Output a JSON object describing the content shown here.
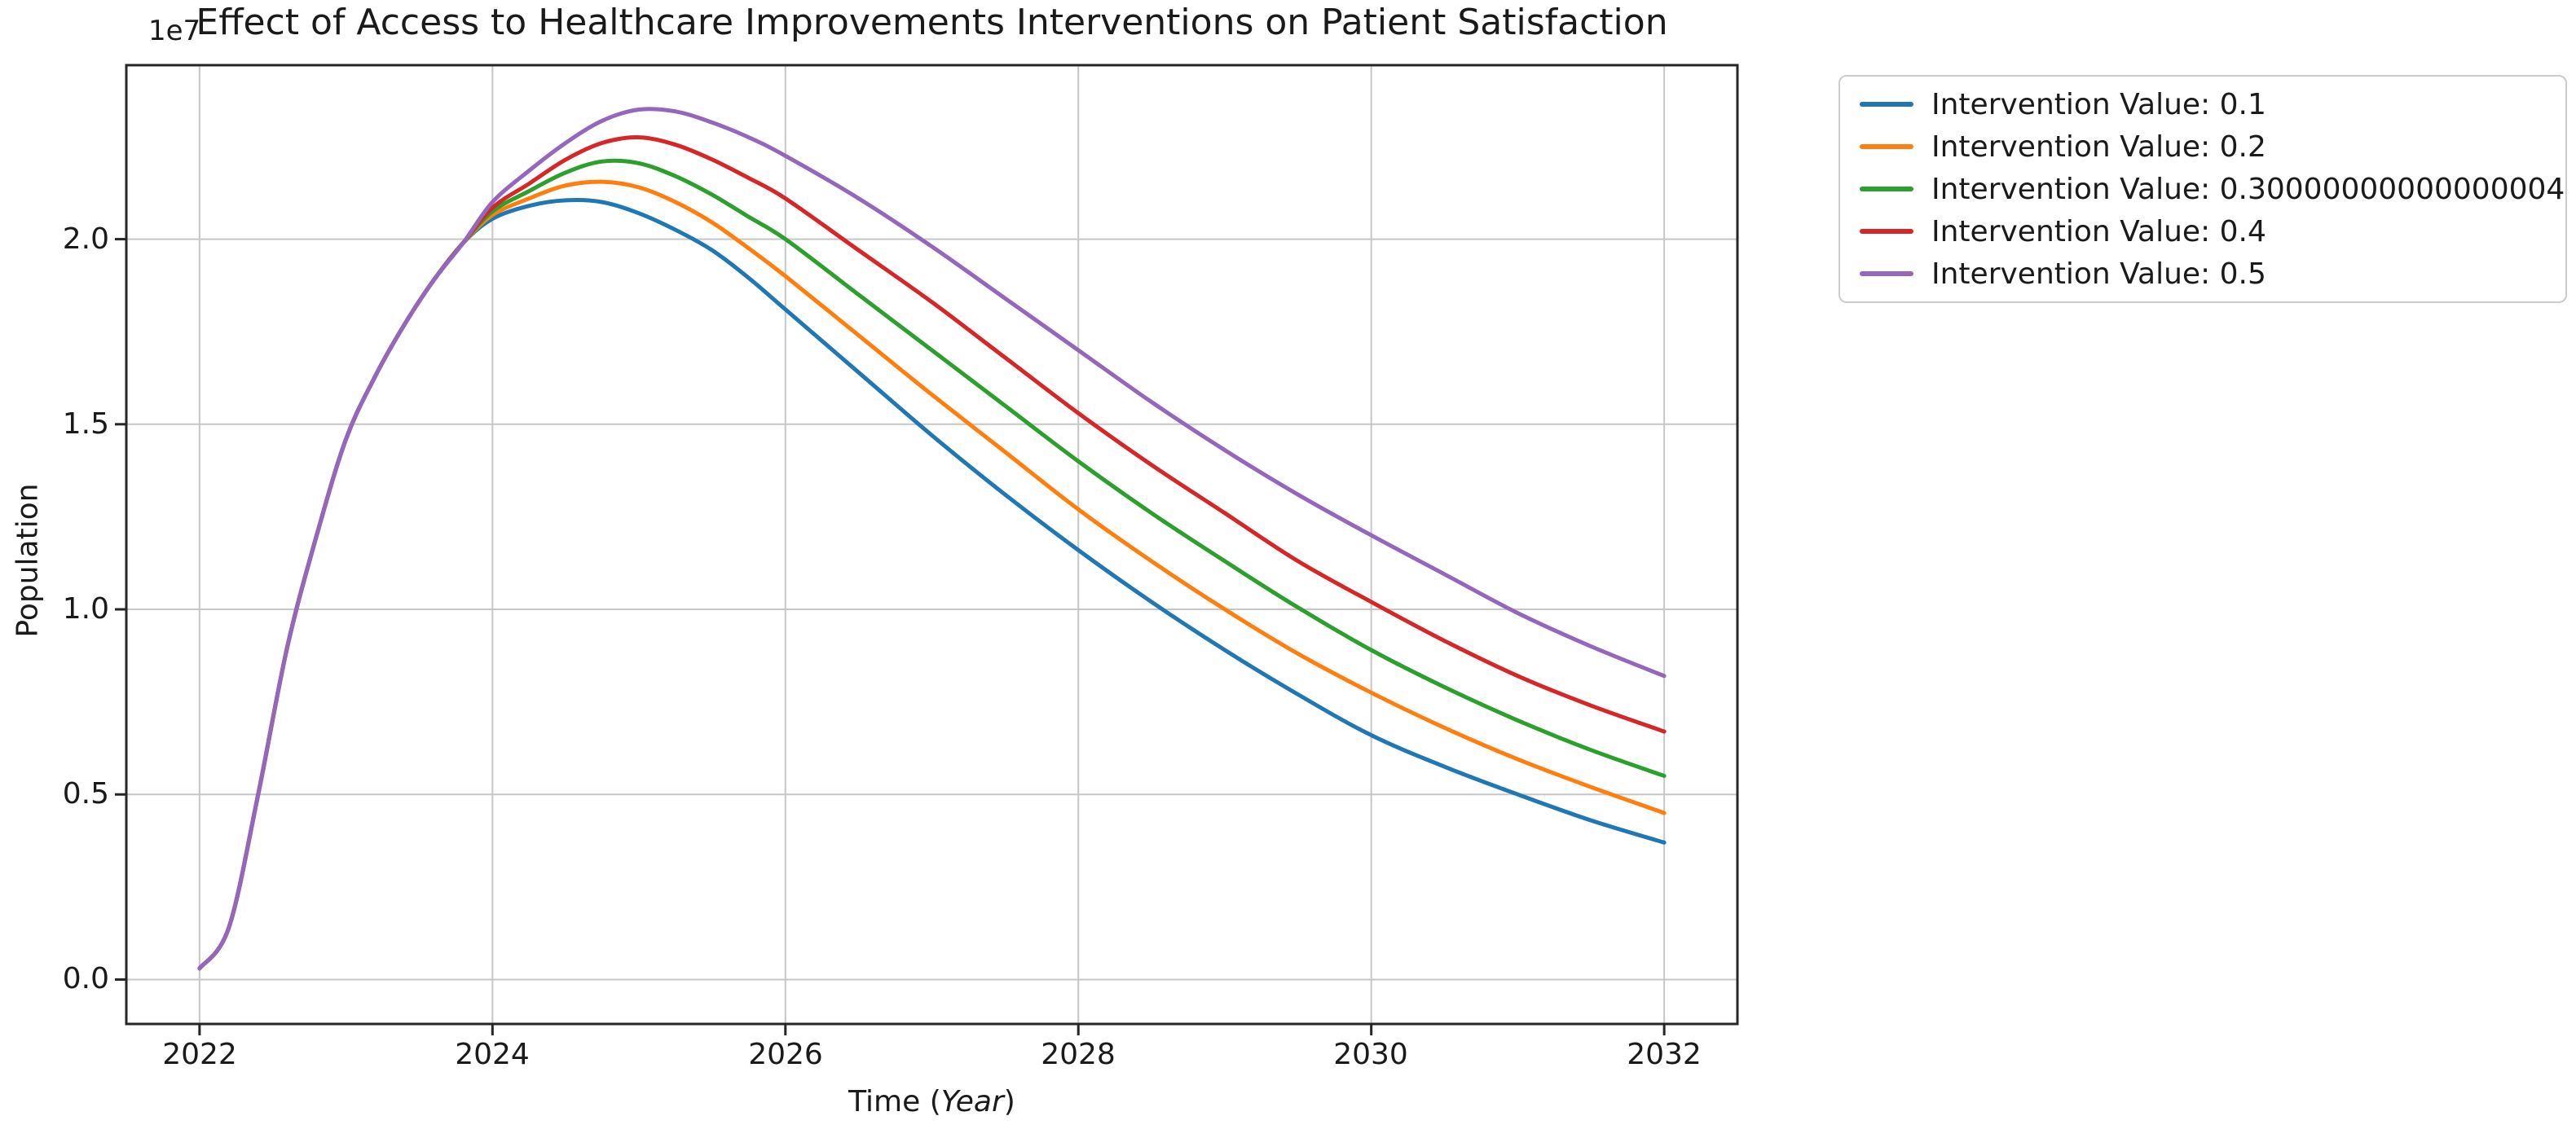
{
  "chart_data": {
    "type": "line",
    "title": "Effect of Access to Healthcare Improvements Interventions on Patient Satisfaction",
    "xlabel": "Time (Year)",
    "xlabel_parts": {
      "prefix": "Time (",
      "italic": "Year",
      "suffix": ")"
    },
    "ylabel": "Population",
    "y_offset_label": "1e7",
    "y_unit_multiplier": 10000000,
    "xlim": [
      2021.5,
      2032.5
    ],
    "ylim_1e7": [
      -0.12,
      2.47
    ],
    "xticks": [
      2022,
      2024,
      2026,
      2028,
      2030,
      2032
    ],
    "yticks_1e7": [
      0.0,
      0.5,
      1.0,
      1.5,
      2.0
    ],
    "ytick_labels": [
      "0.0",
      "0.5",
      "1.0",
      "1.5",
      "2.0"
    ],
    "grid": true,
    "grid_color": "#c6c6c6",
    "spine_color": "#262626",
    "legend_position": "outside-upper-right",
    "series": [
      {
        "name": "Intervention Value: 0.1",
        "color": "#1f77b4",
        "points": [
          [
            2022.0,
            0.03
          ],
          [
            2022.2,
            0.14
          ],
          [
            2022.4,
            0.5
          ],
          [
            2022.6,
            0.9
          ],
          [
            2022.8,
            1.2
          ],
          [
            2023.0,
            1.46
          ],
          [
            2023.2,
            1.63
          ],
          [
            2023.4,
            1.77
          ],
          [
            2023.6,
            1.89
          ],
          [
            2023.8,
            1.99
          ],
          [
            2024.0,
            2.055
          ],
          [
            2024.25,
            2.09
          ],
          [
            2024.5,
            2.105
          ],
          [
            2024.75,
            2.1
          ],
          [
            2025.0,
            2.07
          ],
          [
            2025.25,
            2.025
          ],
          [
            2025.5,
            1.97
          ],
          [
            2025.75,
            1.895
          ],
          [
            2026.0,
            1.81
          ],
          [
            2026.5,
            1.64
          ],
          [
            2027.0,
            1.47
          ],
          [
            2027.5,
            1.31
          ],
          [
            2028.0,
            1.16
          ],
          [
            2028.5,
            1.02
          ],
          [
            2029.0,
            0.89
          ],
          [
            2029.5,
            0.77
          ],
          [
            2030.0,
            0.66
          ],
          [
            2030.5,
            0.575
          ],
          [
            2031.0,
            0.5
          ],
          [
            2031.5,
            0.43
          ],
          [
            2032.0,
            0.37
          ]
        ]
      },
      {
        "name": "Intervention Value: 0.2",
        "color": "#ff7f0e",
        "points": [
          [
            2022.0,
            0.03
          ],
          [
            2022.2,
            0.14
          ],
          [
            2022.4,
            0.5
          ],
          [
            2022.6,
            0.9
          ],
          [
            2022.8,
            1.2
          ],
          [
            2023.0,
            1.46
          ],
          [
            2023.2,
            1.63
          ],
          [
            2023.4,
            1.77
          ],
          [
            2023.6,
            1.89
          ],
          [
            2023.8,
            1.99
          ],
          [
            2024.0,
            2.065
          ],
          [
            2024.25,
            2.11
          ],
          [
            2024.5,
            2.145
          ],
          [
            2024.75,
            2.155
          ],
          [
            2025.0,
            2.14
          ],
          [
            2025.25,
            2.1
          ],
          [
            2025.5,
            2.045
          ],
          [
            2025.75,
            1.975
          ],
          [
            2026.0,
            1.9
          ],
          [
            2026.5,
            1.74
          ],
          [
            2027.0,
            1.58
          ],
          [
            2027.5,
            1.425
          ],
          [
            2028.0,
            1.27
          ],
          [
            2028.5,
            1.13
          ],
          [
            2029.0,
            1.0
          ],
          [
            2029.5,
            0.88
          ],
          [
            2030.0,
            0.775
          ],
          [
            2030.5,
            0.68
          ],
          [
            2031.0,
            0.595
          ],
          [
            2031.5,
            0.52
          ],
          [
            2032.0,
            0.45
          ]
        ]
      },
      {
        "name": "Intervention Value: 0.30000000000000004",
        "color": "#2ca02c",
        "points": [
          [
            2022.0,
            0.03
          ],
          [
            2022.2,
            0.14
          ],
          [
            2022.4,
            0.5
          ],
          [
            2022.6,
            0.9
          ],
          [
            2022.8,
            1.2
          ],
          [
            2023.0,
            1.46
          ],
          [
            2023.2,
            1.63
          ],
          [
            2023.4,
            1.77
          ],
          [
            2023.6,
            1.89
          ],
          [
            2023.8,
            1.99
          ],
          [
            2024.0,
            2.075
          ],
          [
            2024.25,
            2.13
          ],
          [
            2024.5,
            2.18
          ],
          [
            2024.75,
            2.21
          ],
          [
            2025.0,
            2.205
          ],
          [
            2025.25,
            2.17
          ],
          [
            2025.5,
            2.12
          ],
          [
            2025.75,
            2.06
          ],
          [
            2026.0,
            2.0
          ],
          [
            2026.5,
            1.85
          ],
          [
            2027.0,
            1.7
          ],
          [
            2027.5,
            1.55
          ],
          [
            2028.0,
            1.4
          ],
          [
            2028.5,
            1.26
          ],
          [
            2029.0,
            1.13
          ],
          [
            2029.5,
            1.005
          ],
          [
            2030.0,
            0.89
          ],
          [
            2030.5,
            0.79
          ],
          [
            2031.0,
            0.7
          ],
          [
            2031.5,
            0.62
          ],
          [
            2032.0,
            0.55
          ]
        ]
      },
      {
        "name": "Intervention Value: 0.4",
        "color": "#d62728",
        "points": [
          [
            2022.0,
            0.03
          ],
          [
            2022.2,
            0.14
          ],
          [
            2022.4,
            0.5
          ],
          [
            2022.6,
            0.9
          ],
          [
            2022.8,
            1.2
          ],
          [
            2023.0,
            1.46
          ],
          [
            2023.2,
            1.63
          ],
          [
            2023.4,
            1.77
          ],
          [
            2023.6,
            1.89
          ],
          [
            2023.8,
            1.99
          ],
          [
            2024.0,
            2.085
          ],
          [
            2024.25,
            2.15
          ],
          [
            2024.5,
            2.215
          ],
          [
            2024.75,
            2.26
          ],
          [
            2025.0,
            2.275
          ],
          [
            2025.25,
            2.255
          ],
          [
            2025.5,
            2.215
          ],
          [
            2025.75,
            2.165
          ],
          [
            2026.0,
            2.11
          ],
          [
            2026.5,
            1.97
          ],
          [
            2027.0,
            1.83
          ],
          [
            2027.5,
            1.68
          ],
          [
            2028.0,
            1.53
          ],
          [
            2028.5,
            1.39
          ],
          [
            2029.0,
            1.26
          ],
          [
            2029.5,
            1.13
          ],
          [
            2030.0,
            1.02
          ],
          [
            2030.5,
            0.915
          ],
          [
            2031.0,
            0.82
          ],
          [
            2031.5,
            0.74
          ],
          [
            2032.0,
            0.67
          ]
        ]
      },
      {
        "name": "Intervention Value: 0.5",
        "color": "#9467bd",
        "points": [
          [
            2022.0,
            0.03
          ],
          [
            2022.2,
            0.14
          ],
          [
            2022.4,
            0.5
          ],
          [
            2022.6,
            0.9
          ],
          [
            2022.8,
            1.2
          ],
          [
            2023.0,
            1.46
          ],
          [
            2023.2,
            1.63
          ],
          [
            2023.4,
            1.77
          ],
          [
            2023.6,
            1.89
          ],
          [
            2023.8,
            1.99
          ],
          [
            2024.0,
            2.1
          ],
          [
            2024.25,
            2.185
          ],
          [
            2024.5,
            2.26
          ],
          [
            2024.75,
            2.32
          ],
          [
            2025.0,
            2.35
          ],
          [
            2025.25,
            2.345
          ],
          [
            2025.5,
            2.315
          ],
          [
            2025.75,
            2.275
          ],
          [
            2026.0,
            2.225
          ],
          [
            2026.5,
            2.11
          ],
          [
            2027.0,
            1.98
          ],
          [
            2027.5,
            1.84
          ],
          [
            2028.0,
            1.7
          ],
          [
            2028.5,
            1.56
          ],
          [
            2029.0,
            1.43
          ],
          [
            2029.5,
            1.31
          ],
          [
            2030.0,
            1.2
          ],
          [
            2030.5,
            1.095
          ],
          [
            2031.0,
            0.99
          ],
          [
            2031.5,
            0.9
          ],
          [
            2032.0,
            0.82
          ]
        ]
      }
    ]
  }
}
